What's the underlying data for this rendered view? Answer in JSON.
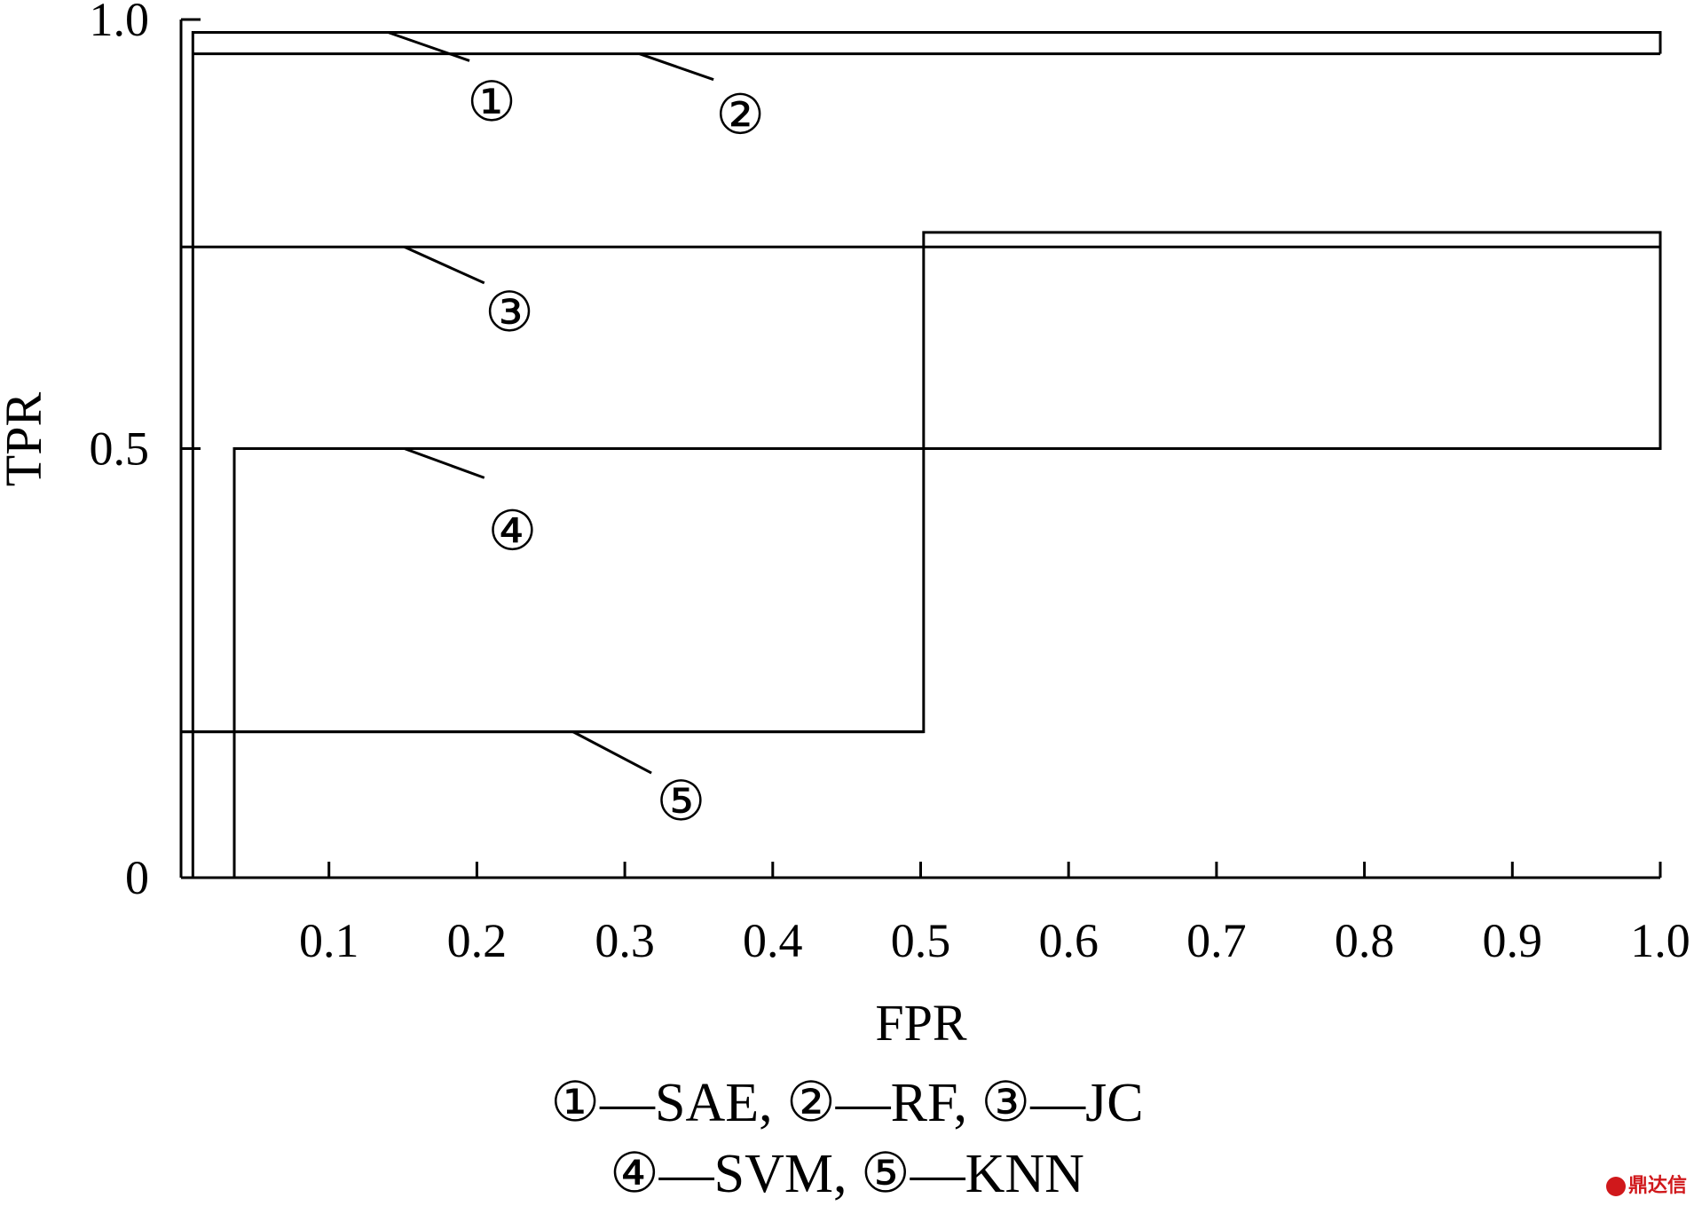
{
  "chart_data": {
    "type": "line",
    "title": "",
    "xlabel": "FPR",
    "ylabel": "TPR",
    "xlim": [
      0,
      1.0
    ],
    "ylim": [
      0,
      1.0
    ],
    "x_ticks": [
      0.1,
      0.2,
      0.3,
      0.4,
      0.5,
      0.6,
      0.7,
      0.8,
      0.9,
      1.0
    ],
    "x_tick_labels": [
      "0.1",
      "0.2",
      "0.3",
      "0.4",
      "0.5",
      "0.6",
      "0.7",
      "0.8",
      "0.9",
      "1.0"
    ],
    "y_ticks": [
      0,
      0.5,
      1.0
    ],
    "y_tick_labels": [
      "0",
      "0.5",
      "1.0"
    ],
    "grid": false,
    "series": [
      {
        "name": "SAE",
        "marker": "①",
        "color": "#000000",
        "points": [
          [
            0.008,
            0
          ],
          [
            0.008,
            0.985
          ],
          [
            1.0,
            0.985
          ],
          [
            1.0,
            0.96
          ]
        ],
        "callout": [
          [
            0.14,
            0.985
          ],
          [
            0.195,
            0.952
          ]
        ],
        "marker_at": [
          0.21,
          0.905
        ]
      },
      {
        "name": "RF",
        "marker": "②",
        "color": "#000000",
        "points": [
          [
            0.008,
            0.96
          ],
          [
            1.0,
            0.96
          ]
        ],
        "callout": [
          [
            0.31,
            0.96
          ],
          [
            0.36,
            0.93
          ]
        ],
        "marker_at": [
          0.378,
          0.89
        ]
      },
      {
        "name": "JC",
        "marker": "③",
        "color": "#000000",
        "points": [
          [
            0.0,
            0.735
          ],
          [
            1.0,
            0.735
          ],
          [
            1.0,
            0.752
          ],
          [
            0.502,
            0.752
          ],
          [
            0.502,
            0.17
          ],
          [
            0.0,
            0.17
          ]
        ],
        "callout": [
          [
            0.151,
            0.735
          ],
          [
            0.205,
            0.693
          ],
          [
            0.13,
            0.735
          ]
        ],
        "marker_at": [
          0.222,
          0.66
        ]
      },
      {
        "name": "SVM",
        "marker": "④",
        "color": "#000000",
        "points": [
          [
            0.036,
            0
          ],
          [
            0.036,
            0.5
          ],
          [
            1.0,
            0.5
          ],
          [
            1.0,
            0.752
          ]
        ],
        "callout": [
          [
            0.151,
            0.5
          ],
          [
            0.205,
            0.466
          ]
        ],
        "marker_at": [
          0.224,
          0.405
        ]
      },
      {
        "name": "KNN",
        "marker": "⑤",
        "color": "#000000",
        "points": [
          [
            0.0,
            0.17
          ],
          [
            0.502,
            0.17
          ]
        ],
        "callout": [
          [
            0.265,
            0.17
          ],
          [
            0.318,
            0.122
          ]
        ],
        "marker_at": [
          0.338,
          0.09
        ]
      }
    ]
  },
  "legend": {
    "line1": "①—SAE, ②—RF, ③—JC",
    "line2": "④—SVM, ⑤—KNN"
  },
  "watermark": "鼎达信"
}
